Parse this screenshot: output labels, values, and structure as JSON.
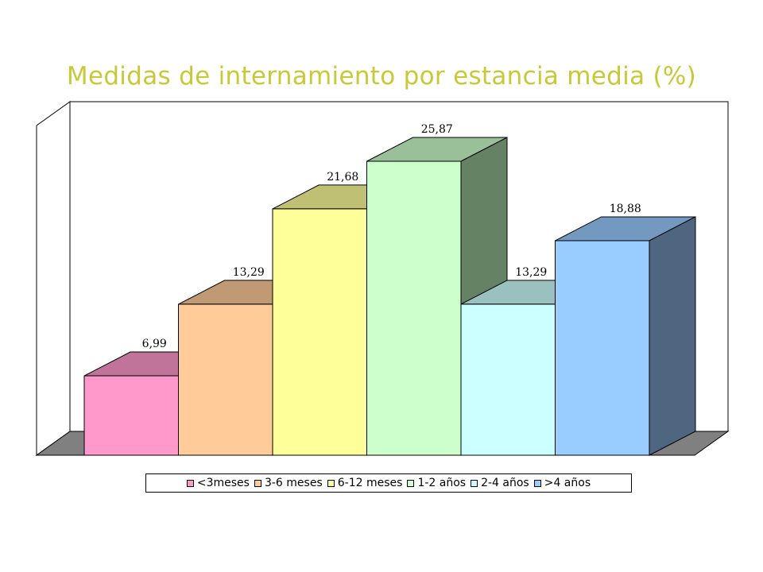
{
  "chart_data": {
    "type": "bar",
    "title": "Medidas de internamiento por estancia media (%)",
    "categories": [
      "<3meses",
      "3-6 meses",
      "6-12 meses",
      "1-2 años",
      "2-4 años",
      ">4 años"
    ],
    "values": [
      6.99,
      13.29,
      21.68,
      25.87,
      13.29,
      18.88
    ],
    "value_labels": [
      "6,99",
      "13,29",
      "21,68",
      "25,87",
      "13,29",
      "18,88"
    ],
    "colors": {
      "front": [
        "#ff99cc",
        "#ffcc99",
        "#ffff99",
        "#ccffcc",
        "#ccffff",
        "#99ccff"
      ],
      "top": [
        "#c0749a",
        "#c09a74",
        "#c0c074",
        "#9ac09a",
        "#9ac0c0",
        "#7499c0"
      ],
      "side": [
        "#996080",
        "#997a60",
        "#999960",
        "#658265",
        "#65827a",
        "#4e6680"
      ]
    },
    "ylim": [
      0,
      30
    ],
    "grid": false,
    "legend_position": "bottom",
    "three_d": true
  }
}
